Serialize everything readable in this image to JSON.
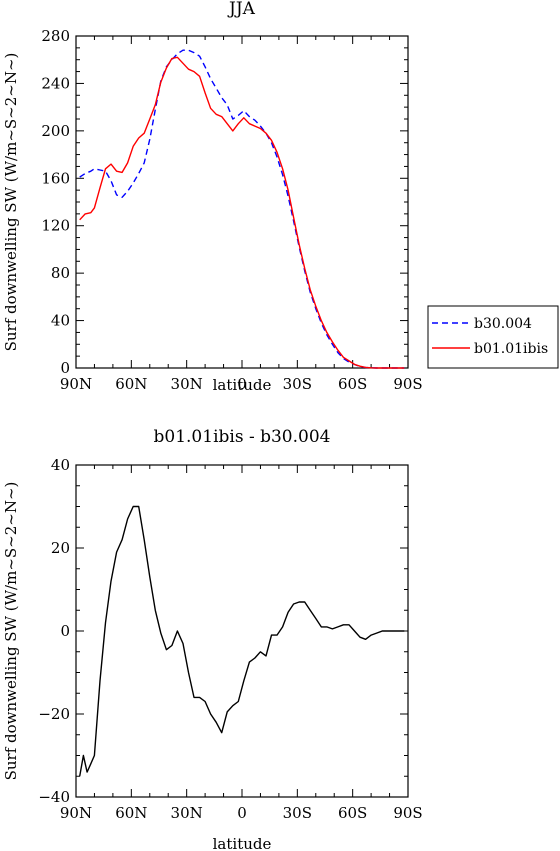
{
  "chart_data": [
    {
      "type": "line",
      "title": "JJA",
      "xlabel": "latitude",
      "ylabel": "Surf downwelling SW (W/m~S~2~N~)",
      "x_ticks": [
        "90N",
        "60N",
        "30N",
        "0",
        "30S",
        "60S",
        "90S"
      ],
      "x_tick_values": [
        90,
        60,
        30,
        0,
        -30,
        -60,
        -90
      ],
      "xlim": [
        90,
        -90
      ],
      "ylim": [
        0,
        280
      ],
      "y_ticks": [
        "0",
        "40",
        "80",
        "120",
        "160",
        "200",
        "240",
        "280"
      ],
      "y_tick_values": [
        0,
        40,
        80,
        120,
        160,
        200,
        240,
        280
      ],
      "grid": false,
      "legend": "right",
      "series": [
        {
          "name": "b30.004",
          "color": "#0000ff",
          "dash": "dashed",
          "x": [
            88,
            85,
            82,
            80,
            77,
            74,
            71,
            68,
            65,
            62,
            59,
            56,
            53,
            50,
            47,
            44,
            41,
            38,
            35,
            32,
            29,
            26,
            23,
            20,
            17,
            14,
            11,
            8,
            5,
            2,
            -1,
            -4,
            -7,
            -10,
            -13,
            -16,
            -19,
            -22,
            -25,
            -28,
            -31,
            -34,
            -37,
            -40,
            -43,
            -46,
            -49,
            -52,
            -55,
            -58,
            -61,
            -64,
            -67,
            -70,
            -73,
            -76,
            -79,
            -82,
            -85,
            -88
          ],
          "y": [
            161,
            164,
            166,
            168,
            167,
            166,
            158,
            146,
            144,
            149,
            156,
            164,
            173,
            193,
            218,
            242,
            254,
            260,
            265,
            268,
            268,
            266,
            263,
            254,
            244,
            236,
            228,
            222,
            210,
            213,
            217,
            212,
            209,
            204,
            198,
            190,
            178,
            163,
            145,
            124,
            102,
            82,
            64,
            50,
            38,
            28,
            20,
            13,
            8,
            5,
            3,
            1,
            0.5,
            0.2,
            0,
            0,
            0,
            0,
            0,
            0
          ]
        },
        {
          "name": "b01.01ibis",
          "color": "#ff0000",
          "dash": "solid",
          "x": [
            88,
            85,
            82,
            80,
            77,
            74,
            71,
            68,
            65,
            62,
            59,
            56,
            53,
            50,
            47,
            44,
            41,
            38,
            35,
            32,
            29,
            26,
            23,
            20,
            17,
            14,
            11,
            8,
            5,
            2,
            -1,
            -4,
            -7,
            -10,
            -13,
            -16,
            -19,
            -22,
            -25,
            -28,
            -31,
            -34,
            -37,
            -40,
            -43,
            -46,
            -49,
            -52,
            -55,
            -58,
            -61,
            -64,
            -67,
            -70,
            -73,
            -76,
            -79,
            -82,
            -85,
            -88
          ],
          "y": [
            125,
            130,
            131,
            135,
            152,
            168,
            172,
            166,
            165,
            173,
            187,
            194,
            198,
            210,
            222,
            241,
            253,
            261,
            262,
            257,
            252,
            250,
            246,
            232,
            219,
            214,
            212,
            206,
            200,
            206,
            211,
            206,
            204,
            202,
            198,
            192,
            182,
            168,
            150,
            127,
            104,
            84,
            66,
            52,
            40,
            30,
            22,
            15,
            9,
            6,
            3,
            1.5,
            0.5,
            0.2,
            0,
            0,
            0,
            0,
            0,
            0
          ]
        }
      ]
    },
    {
      "type": "line",
      "title": "b01.01ibis - b30.004",
      "xlabel": "latitude",
      "ylabel": "Surf downwelling SW (W/m~S~2~N~)",
      "x_ticks": [
        "90N",
        "60N",
        "30N",
        "0",
        "30S",
        "60S",
        "90S"
      ],
      "x_tick_values": [
        90,
        60,
        30,
        0,
        -30,
        -60,
        -90
      ],
      "xlim": [
        90,
        -90
      ],
      "ylim": [
        -40,
        40
      ],
      "y_ticks": [
        "−40",
        "−20",
        "0",
        "20",
        "40"
      ],
      "y_tick_values": [
        -40,
        -20,
        0,
        20,
        40
      ],
      "grid": false,
      "series": [
        {
          "color": "#000000",
          "dash": "solid",
          "x": [
            88,
            86,
            84,
            82,
            80,
            77,
            74,
            71,
            68,
            65,
            62,
            59,
            56,
            53,
            50,
            47,
            44,
            41,
            38,
            35,
            32,
            29,
            26,
            23,
            20,
            17,
            14,
            11,
            8,
            5,
            2,
            -1,
            -4,
            -7,
            -10,
            -13,
            -16,
            -19,
            -22,
            -25,
            -28,
            -31,
            -34,
            -37,
            -40,
            -43,
            -46,
            -49,
            -52,
            -55,
            -58,
            -61,
            -64,
            -67,
            -70,
            -73,
            -76,
            -79,
            -82,
            -85,
            -88
          ],
          "y": [
            -35,
            -30,
            -34,
            -32,
            -30,
            -12,
            2,
            12,
            19,
            22,
            27,
            30,
            30,
            22,
            13,
            5,
            -0.5,
            -4.5,
            -3.5,
            0,
            -3,
            -10,
            -16,
            -16,
            -17,
            -20,
            -22,
            -24.5,
            -19.5,
            -18,
            -17,
            -12,
            -7.5,
            -6.5,
            -5,
            -6,
            -1,
            -1,
            1,
            4.5,
            6.5,
            7,
            7,
            5,
            3,
            1,
            1,
            0.5,
            1,
            1.5,
            1.5,
            0,
            -1.5,
            -2,
            -1,
            -0.5,
            0,
            0,
            0,
            0,
            0
          ]
        }
      ]
    }
  ]
}
